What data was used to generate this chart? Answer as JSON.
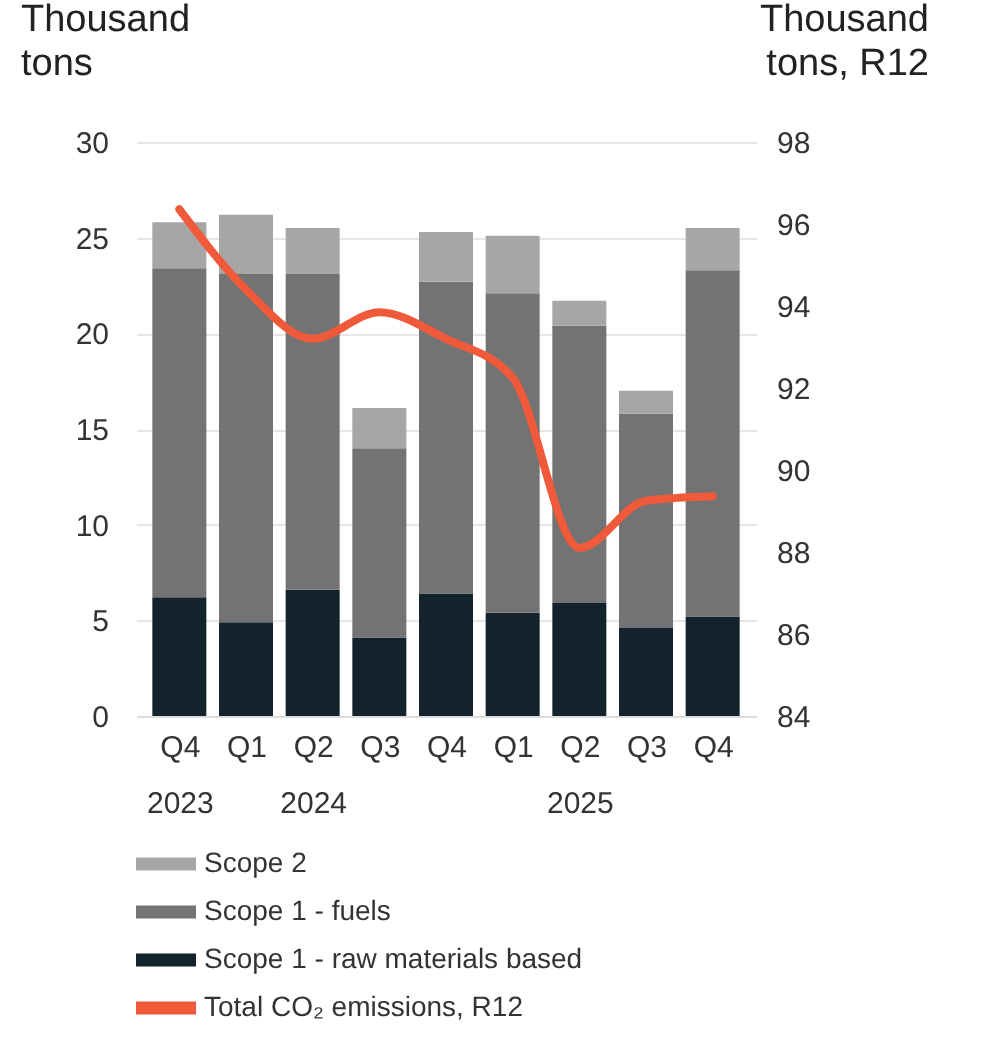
{
  "chart_data": {
    "type": "bar",
    "stacked": true,
    "categories": [
      "Q4\n2023",
      "Q1",
      "Q2\n2024",
      "Q3",
      "Q4",
      "Q1",
      "Q2\n2025",
      "Q3",
      "Q4"
    ],
    "ylabel": "Thousand tons",
    "y2label": "Thousand tons, R12",
    "ylim": [
      0,
      30
    ],
    "yticks": [
      0,
      5,
      10,
      15,
      20,
      25,
      30
    ],
    "y2lim": [
      84,
      98
    ],
    "y2ticks": [
      84,
      86,
      88,
      90,
      92,
      94,
      96,
      98
    ],
    "grid": "y",
    "legend": "bottom",
    "series": [
      {
        "name": "Scope 1 - raw materials based",
        "color": "#12232e",
        "values": [
          6.2,
          4.9,
          6.6,
          4.1,
          6.4,
          5.4,
          5.9,
          4.6,
          5.2
        ]
      },
      {
        "name": "Scope 1 - fuels",
        "color": "#737373",
        "values": [
          17.2,
          18.2,
          16.5,
          9.9,
          16.3,
          16.7,
          14.5,
          11.2,
          18.1
        ]
      },
      {
        "name": "Scope 2",
        "color": "#a6a6a6",
        "values": [
          2.4,
          3.1,
          2.4,
          2.1,
          2.6,
          3.0,
          1.3,
          1.2,
          2.2
        ]
      },
      {
        "name": "Total CO₂ emissions, R12",
        "color": "#f05a3a",
        "type": "line",
        "axis": "y2",
        "line_style": "solid",
        "values": [
          96.36,
          94.4,
          93.2,
          93.85,
          93.2,
          92.25,
          88.1,
          89.25,
          89.36
        ]
      }
    ]
  }
}
